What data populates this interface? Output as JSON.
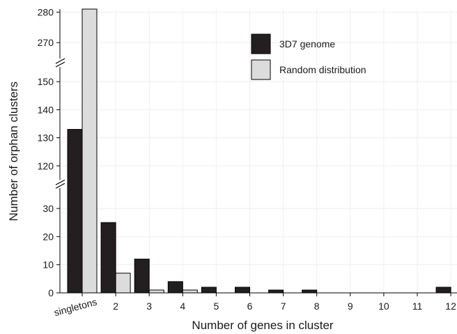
{
  "chart_data": {
    "type": "bar",
    "xlabel": "Number of genes in cluster",
    "ylabel": "Number of orphan clusters",
    "categories": [
      "singletons",
      "2",
      "3",
      "4",
      "5",
      "6",
      "7",
      "8",
      "9",
      "10",
      "11",
      "12"
    ],
    "series": [
      {
        "name": "3D7 genome",
        "color": "#231f20",
        "values": [
          133,
          25,
          12,
          4,
          2,
          2,
          1,
          1,
          0,
          0,
          0,
          2
        ]
      },
      {
        "name": "Random distribution",
        "color": "#dcdcdc",
        "values": [
          281,
          7,
          1,
          1,
          0,
          0,
          0,
          0,
          0,
          0,
          0,
          0
        ]
      }
    ],
    "y_segments": [
      {
        "range": [
          0,
          30
        ],
        "ticks": [
          0,
          10,
          20,
          30
        ]
      },
      {
        "range": [
          115,
          155
        ],
        "ticks": [
          120,
          130,
          140,
          150
        ]
      },
      {
        "range": [
          265,
          281
        ],
        "ticks": [
          270,
          280
        ]
      }
    ],
    "axis_break": true,
    "grid": true,
    "legend_position": "top-right"
  }
}
